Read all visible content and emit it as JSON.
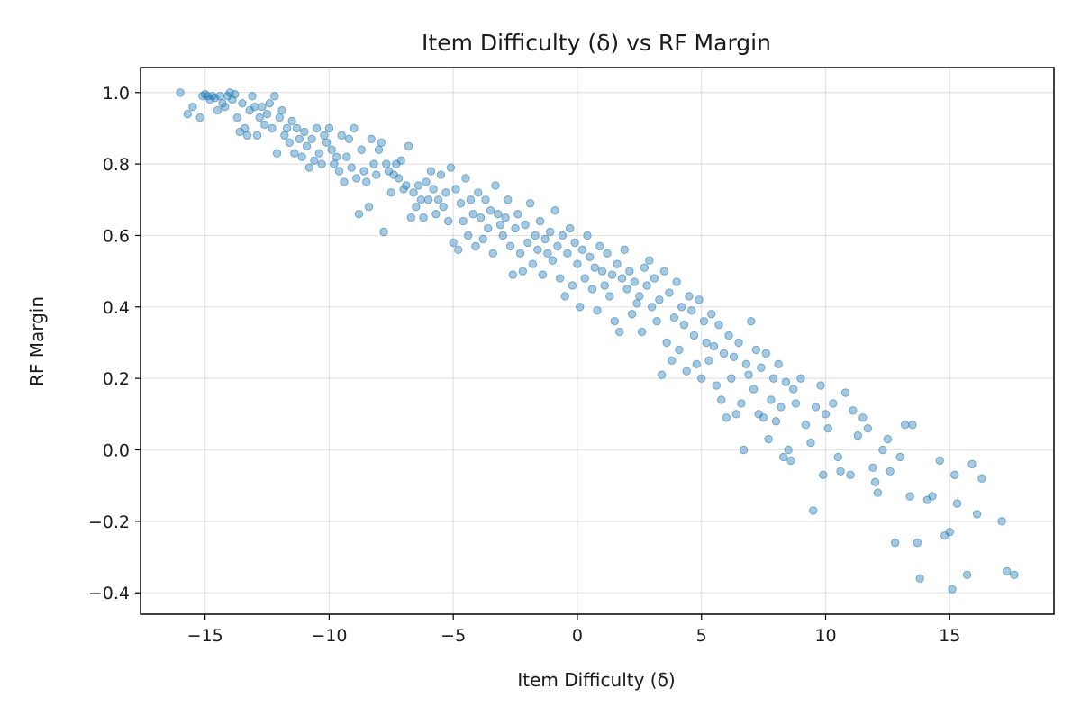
{
  "chart_data": {
    "type": "scatter",
    "title": "Item Difficulty (δ) vs RF Margin",
    "xlabel": "Item Difficulty (δ)",
    "ylabel": "RF Margin",
    "xlim": [
      -17.6,
      19.2
    ],
    "ylim": [
      -0.46,
      1.07
    ],
    "xticks": [
      -15,
      -10,
      -5,
      0,
      5,
      10,
      15
    ],
    "xtick_labels": [
      "−15",
      "−10",
      "−5",
      "0",
      "5",
      "10",
      "15"
    ],
    "yticks": [
      -0.4,
      -0.2,
      0.0,
      0.2,
      0.4,
      0.6,
      0.8,
      1.0
    ],
    "ytick_labels": [
      "−0.4",
      "−0.2",
      "0.0",
      "0.2",
      "0.4",
      "0.6",
      "0.8",
      "1.0"
    ],
    "grid": true,
    "point_color": "#1f77b4",
    "point_opacity": 0.4,
    "series": [
      {
        "points": [
          [
            -16.0,
            1.0
          ],
          [
            -15.7,
            0.94
          ],
          [
            -15.5,
            0.96
          ],
          [
            -15.2,
            0.93
          ],
          [
            -15.1,
            0.99
          ],
          [
            -15.0,
            0.995
          ],
          [
            -14.9,
            0.99
          ],
          [
            -14.8,
            0.98
          ],
          [
            -14.7,
            0.99
          ],
          [
            -14.6,
            0.985
          ],
          [
            -14.5,
            0.95
          ],
          [
            -14.4,
            0.99
          ],
          [
            -14.3,
            0.97
          ],
          [
            -14.2,
            0.96
          ],
          [
            -14.1,
            0.99
          ],
          [
            -14.0,
            1.0
          ],
          [
            -13.9,
            0.98
          ],
          [
            -13.8,
            0.995
          ],
          [
            -13.7,
            0.93
          ],
          [
            -13.6,
            0.89
          ],
          [
            -13.5,
            0.97
          ],
          [
            -13.4,
            0.9
          ],
          [
            -13.3,
            0.88
          ],
          [
            -13.2,
            0.95
          ],
          [
            -13.1,
            0.99
          ],
          [
            -13.0,
            0.96
          ],
          [
            -12.9,
            0.88
          ],
          [
            -12.8,
            0.93
          ],
          [
            -12.7,
            0.96
          ],
          [
            -12.6,
            0.91
          ],
          [
            -12.5,
            0.94
          ],
          [
            -12.4,
            0.97
          ],
          [
            -12.3,
            0.9
          ],
          [
            -12.2,
            0.99
          ],
          [
            -12.1,
            0.83
          ],
          [
            -12.0,
            0.93
          ],
          [
            -11.9,
            0.95
          ],
          [
            -11.8,
            0.88
          ],
          [
            -11.7,
            0.9
          ],
          [
            -11.6,
            0.86
          ],
          [
            -11.5,
            0.92
          ],
          [
            -11.4,
            0.83
          ],
          [
            -11.3,
            0.9
          ],
          [
            -11.2,
            0.87
          ],
          [
            -11.1,
            0.82
          ],
          [
            -11.0,
            0.89
          ],
          [
            -10.9,
            0.85
          ],
          [
            -10.8,
            0.79
          ],
          [
            -10.7,
            0.87
          ],
          [
            -10.6,
            0.81
          ],
          [
            -10.5,
            0.9
          ],
          [
            -10.4,
            0.83
          ],
          [
            -10.3,
            0.8
          ],
          [
            -10.2,
            0.88
          ],
          [
            -10.1,
            0.86
          ],
          [
            -10.0,
            0.9
          ],
          [
            -9.9,
            0.84
          ],
          [
            -9.8,
            0.8
          ],
          [
            -9.7,
            0.82
          ],
          [
            -9.6,
            0.78
          ],
          [
            -9.5,
            0.88
          ],
          [
            -9.4,
            0.75
          ],
          [
            -9.3,
            0.82
          ],
          [
            -9.2,
            0.87
          ],
          [
            -9.1,
            0.79
          ],
          [
            -9.0,
            0.9
          ],
          [
            -8.9,
            0.76
          ],
          [
            -8.8,
            0.66
          ],
          [
            -8.7,
            0.84
          ],
          [
            -8.6,
            0.78
          ],
          [
            -8.5,
            0.75
          ],
          [
            -8.4,
            0.68
          ],
          [
            -8.3,
            0.87
          ],
          [
            -8.2,
            0.8
          ],
          [
            -8.1,
            0.77
          ],
          [
            -8.0,
            0.84
          ],
          [
            -7.9,
            0.86
          ],
          [
            -7.8,
            0.61
          ],
          [
            -7.7,
            0.8
          ],
          [
            -7.6,
            0.78
          ],
          [
            -7.5,
            0.72
          ],
          [
            -7.4,
            0.77
          ],
          [
            -7.3,
            0.8
          ],
          [
            -7.2,
            0.76
          ],
          [
            -7.1,
            0.81
          ],
          [
            -7.0,
            0.73
          ],
          [
            -6.9,
            0.74
          ],
          [
            -6.8,
            0.85
          ],
          [
            -6.7,
            0.65
          ],
          [
            -6.6,
            0.72
          ],
          [
            -6.5,
            0.68
          ],
          [
            -6.4,
            0.74
          ],
          [
            -6.3,
            0.7
          ],
          [
            -6.2,
            0.65
          ],
          [
            -6.1,
            0.75
          ],
          [
            -6.0,
            0.7
          ],
          [
            -5.9,
            0.78
          ],
          [
            -5.8,
            0.73
          ],
          [
            -5.7,
            0.66
          ],
          [
            -5.6,
            0.7
          ],
          [
            -5.5,
            0.77
          ],
          [
            -5.4,
            0.68
          ],
          [
            -5.3,
            0.72
          ],
          [
            -5.2,
            0.64
          ],
          [
            -5.1,
            0.79
          ],
          [
            -5.0,
            0.58
          ],
          [
            -4.9,
            0.73
          ],
          [
            -4.8,
            0.56
          ],
          [
            -4.7,
            0.69
          ],
          [
            -4.6,
            0.64
          ],
          [
            -4.5,
            0.76
          ],
          [
            -4.4,
            0.6
          ],
          [
            -4.3,
            0.7
          ],
          [
            -4.2,
            0.66
          ],
          [
            -4.1,
            0.57
          ],
          [
            -4.0,
            0.72
          ],
          [
            -3.9,
            0.65
          ],
          [
            -3.8,
            0.59
          ],
          [
            -3.7,
            0.7
          ],
          [
            -3.6,
            0.62
          ],
          [
            -3.5,
            0.67
          ],
          [
            -3.4,
            0.55
          ],
          [
            -3.3,
            0.74
          ],
          [
            -3.2,
            0.66
          ],
          [
            -3.1,
            0.63
          ],
          [
            -3.0,
            0.6
          ],
          [
            -2.9,
            0.65
          ],
          [
            -2.8,
            0.7
          ],
          [
            -2.7,
            0.57
          ],
          [
            -2.6,
            0.49
          ],
          [
            -2.5,
            0.62
          ],
          [
            -2.4,
            0.66
          ],
          [
            -2.3,
            0.55
          ],
          [
            -2.2,
            0.5
          ],
          [
            -2.1,
            0.63
          ],
          [
            -2.0,
            0.58
          ],
          [
            -1.9,
            0.69
          ],
          [
            -1.8,
            0.52
          ],
          [
            -1.7,
            0.6
          ],
          [
            -1.6,
            0.56
          ],
          [
            -1.5,
            0.64
          ],
          [
            -1.4,
            0.49
          ],
          [
            -1.3,
            0.59
          ],
          [
            -1.2,
            0.55
          ],
          [
            -1.1,
            0.61
          ],
          [
            -1.0,
            0.53
          ],
          [
            -0.9,
            0.67
          ],
          [
            -0.8,
            0.57
          ],
          [
            -0.7,
            0.48
          ],
          [
            -0.6,
            0.6
          ],
          [
            -0.5,
            0.43
          ],
          [
            -0.4,
            0.55
          ],
          [
            -0.3,
            0.62
          ],
          [
            -0.2,
            0.46
          ],
          [
            -0.1,
            0.58
          ],
          [
            0.0,
            0.52
          ],
          [
            0.1,
            0.4
          ],
          [
            0.2,
            0.56
          ],
          [
            0.3,
            0.48
          ],
          [
            0.4,
            0.6
          ],
          [
            0.5,
            0.54
          ],
          [
            0.6,
            0.45
          ],
          [
            0.7,
            0.51
          ],
          [
            0.8,
            0.39
          ],
          [
            0.9,
            0.57
          ],
          [
            1.0,
            0.5
          ],
          [
            1.1,
            0.46
          ],
          [
            1.2,
            0.55
          ],
          [
            1.3,
            0.43
          ],
          [
            1.4,
            0.49
          ],
          [
            1.5,
            0.36
          ],
          [
            1.6,
            0.52
          ],
          [
            1.7,
            0.33
          ],
          [
            1.8,
            0.48
          ],
          [
            1.9,
            0.56
          ],
          [
            2.0,
            0.45
          ],
          [
            2.1,
            0.5
          ],
          [
            2.2,
            0.38
          ],
          [
            2.3,
            0.47
          ],
          [
            2.4,
            0.41
          ],
          [
            2.5,
            0.43
          ],
          [
            2.6,
            0.33
          ],
          [
            2.7,
            0.51
          ],
          [
            2.8,
            0.46
          ],
          [
            2.9,
            0.53
          ],
          [
            3.0,
            0.4
          ],
          [
            3.1,
            0.48
          ],
          [
            3.2,
            0.36
          ],
          [
            3.3,
            0.42
          ],
          [
            3.4,
            0.21
          ],
          [
            3.5,
            0.5
          ],
          [
            3.6,
            0.3
          ],
          [
            3.7,
            0.44
          ],
          [
            3.8,
            0.25
          ],
          [
            3.9,
            0.37
          ],
          [
            4.0,
            0.47
          ],
          [
            4.1,
            0.28
          ],
          [
            4.2,
            0.4
          ],
          [
            4.3,
            0.35
          ],
          [
            4.4,
            0.22
          ],
          [
            4.5,
            0.43
          ],
          [
            4.6,
            0.39
          ],
          [
            4.7,
            0.32
          ],
          [
            4.8,
            0.24
          ],
          [
            4.9,
            0.42
          ],
          [
            5.0,
            0.2
          ],
          [
            5.1,
            0.36
          ],
          [
            5.2,
            0.3
          ],
          [
            5.3,
            0.25
          ],
          [
            5.4,
            0.38
          ],
          [
            5.5,
            0.29
          ],
          [
            5.6,
            0.18
          ],
          [
            5.7,
            0.35
          ],
          [
            5.8,
            0.14
          ],
          [
            5.9,
            0.27
          ],
          [
            6.0,
            0.09
          ],
          [
            6.1,
            0.32
          ],
          [
            6.2,
            0.2
          ],
          [
            6.3,
            0.26
          ],
          [
            6.4,
            0.1
          ],
          [
            6.5,
            0.3
          ],
          [
            6.6,
            0.13
          ],
          [
            6.7,
            0.0
          ],
          [
            6.8,
            0.24
          ],
          [
            6.9,
            0.21
          ],
          [
            7.0,
            0.36
          ],
          [
            7.1,
            0.17
          ],
          [
            7.2,
            0.28
          ],
          [
            7.3,
            0.1
          ],
          [
            7.4,
            0.23
          ],
          [
            7.5,
            0.09
          ],
          [
            7.6,
            0.27
          ],
          [
            7.7,
            0.03
          ],
          [
            7.8,
            0.14
          ],
          [
            7.9,
            0.2
          ],
          [
            8.0,
            0.08
          ],
          [
            8.1,
            0.24
          ],
          [
            8.2,
            0.12
          ],
          [
            8.3,
            -0.02
          ],
          [
            8.4,
            0.19
          ],
          [
            8.5,
            0.0
          ],
          [
            8.6,
            -0.03
          ],
          [
            8.7,
            0.17
          ],
          [
            8.8,
            0.13
          ],
          [
            9.0,
            0.2
          ],
          [
            9.2,
            0.07
          ],
          [
            9.4,
            0.02
          ],
          [
            9.5,
            -0.17
          ],
          [
            9.6,
            0.12
          ],
          [
            9.8,
            0.18
          ],
          [
            9.9,
            -0.07
          ],
          [
            10.0,
            0.1
          ],
          [
            10.1,
            0.06
          ],
          [
            10.3,
            0.13
          ],
          [
            10.5,
            -0.02
          ],
          [
            10.6,
            -0.06
          ],
          [
            10.8,
            0.16
          ],
          [
            11.0,
            -0.07
          ],
          [
            11.1,
            0.11
          ],
          [
            11.3,
            0.04
          ],
          [
            11.5,
            0.09
          ],
          [
            11.7,
            0.06
          ],
          [
            11.9,
            -0.05
          ],
          [
            12.0,
            -0.09
          ],
          [
            12.1,
            -0.12
          ],
          [
            12.3,
            0.0
          ],
          [
            12.5,
            0.03
          ],
          [
            12.6,
            -0.06
          ],
          [
            12.8,
            -0.26
          ],
          [
            13.0,
            -0.02
          ],
          [
            13.2,
            0.07
          ],
          [
            13.4,
            -0.13
          ],
          [
            13.5,
            0.07
          ],
          [
            13.7,
            -0.26
          ],
          [
            13.8,
            -0.36
          ],
          [
            14.1,
            -0.14
          ],
          [
            14.3,
            -0.13
          ],
          [
            14.6,
            -0.03
          ],
          [
            14.8,
            -0.24
          ],
          [
            15.0,
            -0.23
          ],
          [
            15.1,
            -0.39
          ],
          [
            15.2,
            -0.07
          ],
          [
            15.3,
            -0.15
          ],
          [
            15.7,
            -0.35
          ],
          [
            15.9,
            -0.04
          ],
          [
            16.1,
            -0.18
          ],
          [
            16.3,
            -0.08
          ],
          [
            17.1,
            -0.2
          ],
          [
            17.3,
            -0.34
          ],
          [
            17.6,
            -0.35
          ]
        ]
      }
    ]
  }
}
